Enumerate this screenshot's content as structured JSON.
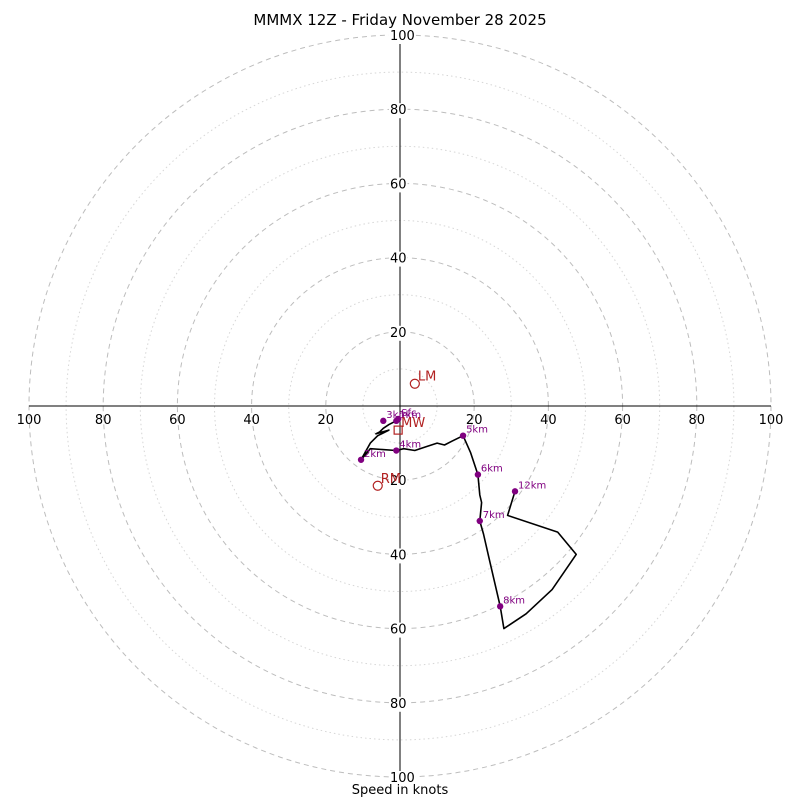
{
  "chart_data": {
    "type": "hodograph",
    "title": "MMMX 12Z - Friday November 28 2025",
    "xlabel": "Speed in knots",
    "range": [
      -100,
      100
    ],
    "ring_labels": [
      "20",
      "40",
      "60",
      "80",
      "100"
    ],
    "axis_tick_labels": [
      "100",
      "80",
      "60",
      "40",
      "20",
      "20",
      "40",
      "60",
      "80",
      "100"
    ],
    "trace": [
      [
        -0.5,
        -3.5
      ],
      [
        -1.0,
        -4.0
      ],
      [
        -3.0,
        -5.0
      ],
      [
        -4.5,
        -6.0
      ],
      [
        -5.5,
        -7.0
      ],
      [
        -6.5,
        -7.5
      ],
      [
        -3.0,
        -6.5
      ],
      [
        -6.0,
        -8.0
      ],
      [
        -8.0,
        -10.0
      ],
      [
        -10.5,
        -14.5
      ],
      [
        -8.0,
        -11.5
      ],
      [
        -1.0,
        -12.0
      ],
      [
        1.0,
        -11.5
      ],
      [
        4.0,
        -12.0
      ],
      [
        7.0,
        -11.0
      ],
      [
        10.0,
        -10.0
      ],
      [
        12.0,
        -10.5
      ],
      [
        14.0,
        -9.5
      ],
      [
        17.0,
        -8.0
      ],
      [
        19.0,
        -12.5
      ],
      [
        21.0,
        -18.5
      ],
      [
        21.5,
        -24.0
      ],
      [
        22.0,
        -26.0
      ],
      [
        21.5,
        -31.0
      ],
      [
        22.5,
        -34.5
      ],
      [
        24.0,
        -41.0
      ],
      [
        25.5,
        -47.5
      ],
      [
        27.0,
        -54.0
      ],
      [
        28.0,
        -60.0
      ],
      [
        34.0,
        -56.0
      ],
      [
        41.0,
        -49.5
      ],
      [
        47.5,
        -40.0
      ],
      [
        42.5,
        -34.0
      ],
      [
        29.0,
        -29.5
      ],
      [
        31.0,
        -23.0
      ]
    ],
    "height_points": [
      {
        "label": "Sfc",
        "u": -0.5,
        "v": -3.5
      },
      {
        "label": "1km",
        "u": -1.0,
        "v": -4.0
      },
      {
        "label": "3km",
        "u": -4.5,
        "v": -4.0
      },
      {
        "label": "2km",
        "u": -10.5,
        "v": -14.5
      },
      {
        "label": "4km",
        "u": -1.0,
        "v": -12.0
      },
      {
        "label": "5km",
        "u": 17.0,
        "v": -8.0
      },
      {
        "label": "6km",
        "u": 21.0,
        "v": -18.5
      },
      {
        "label": "7km",
        "u": 21.5,
        "v": -31.0
      },
      {
        "label": "8km",
        "u": 27.0,
        "v": -54.0
      },
      {
        "label": "12km",
        "u": 31.0,
        "v": -23.0
      }
    ],
    "storm_motion": [
      {
        "label": "LM",
        "u": 4.0,
        "v": 6.0
      },
      {
        "label": "RM",
        "u": -6.0,
        "v": -21.5
      },
      {
        "label": "MW",
        "u": -0.5,
        "v": -6.5
      }
    ],
    "colors": {
      "trace": "#000000",
      "height_points": "#800080",
      "storm_motion": "#b22222",
      "ring_major": "#bdbdbd",
      "ring_minor": "#d6d6d6"
    }
  }
}
